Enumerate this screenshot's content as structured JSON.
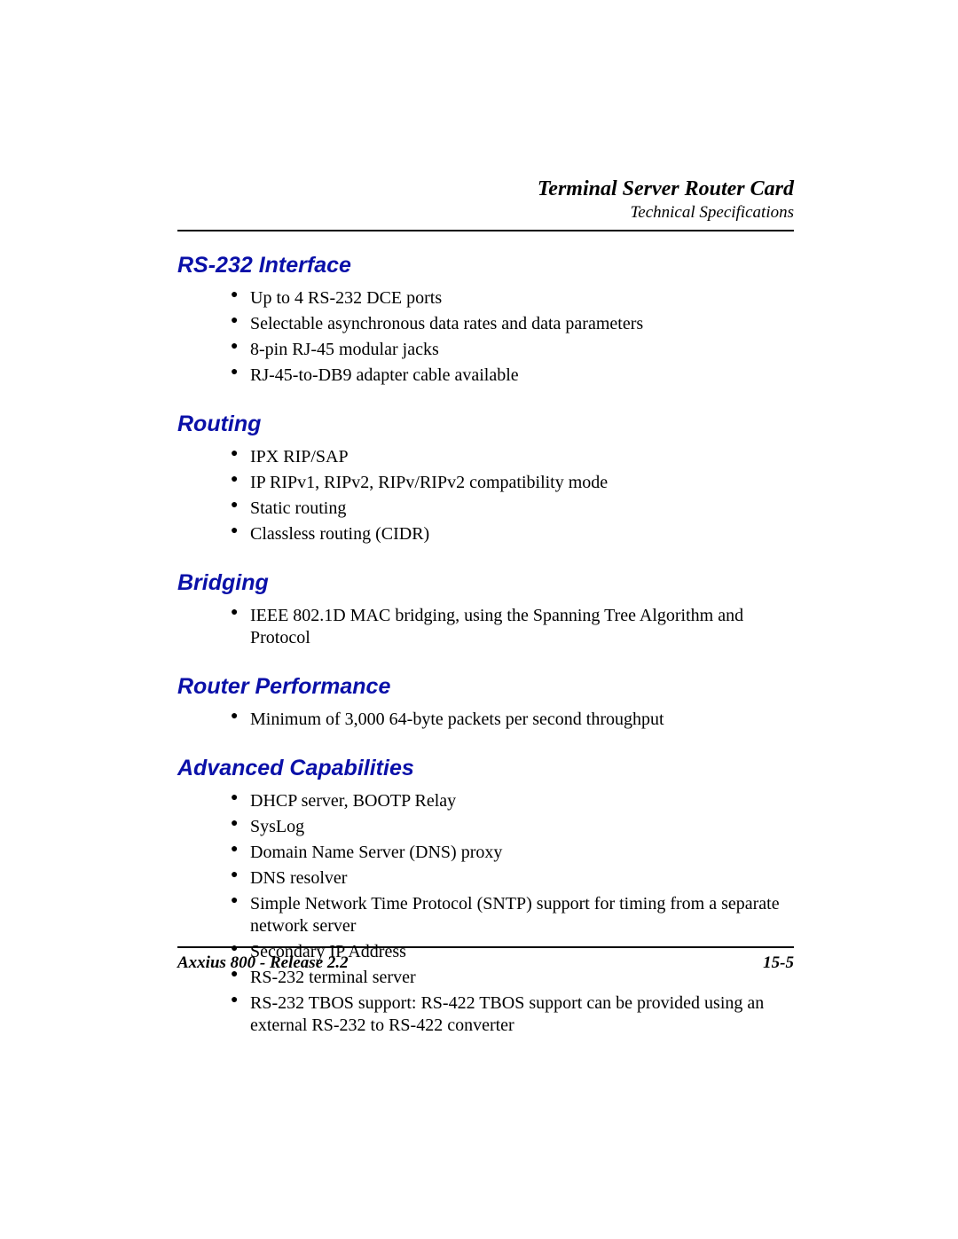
{
  "colors": {
    "heading": "#0a10a8",
    "text": "#000000",
    "rule": "#000000",
    "background": "#ffffff"
  },
  "typography": {
    "body_family": "Times New Roman",
    "heading_family": "Arial",
    "heading_fontsize_pt": 19,
    "body_fontsize_pt": 15,
    "header_title_fontsize_pt": 18,
    "header_sub_fontsize_pt": 14,
    "footer_fontsize_pt": 14
  },
  "header": {
    "title": "Terminal Server Router Card",
    "subtitle": "Technical Specifications"
  },
  "sections": [
    {
      "heading": "RS-232 Interface",
      "items": [
        "Up to 4 RS-232 DCE ports",
        "Selectable asynchronous data rates and data parameters",
        "8-pin RJ-45 modular jacks",
        "RJ-45-to-DB9 adapter cable available"
      ]
    },
    {
      "heading": "Routing",
      "items": [
        "IPX RIP/SAP",
        "IP RIPv1, RIPv2, RIPv/RIPv2 compatibility mode",
        "Static routing",
        "Classless routing (CIDR)"
      ]
    },
    {
      "heading": "Bridging",
      "items": [
        "IEEE 802.1D MAC bridging, using the Spanning Tree Algorithm and Protocol"
      ]
    },
    {
      "heading": "Router Performance",
      "items": [
        "Minimum of 3,000 64-byte packets per second throughput"
      ]
    },
    {
      "heading": "Advanced Capabilities",
      "items": [
        "DHCP server, BOOTP Relay",
        "SysLog",
        "Domain Name Server (DNS) proxy",
        "DNS resolver",
        "Simple Network Time Protocol (SNTP) support for timing from a separate network server",
        "Secondary IP Address",
        "RS-232 terminal server",
        "RS-232 TBOS support: RS-422 TBOS support can be provided using an external RS-232 to RS-422 converter"
      ]
    }
  ],
  "footer": {
    "left": "Axxius 800 - Release 2.2",
    "right": "15-5"
  }
}
